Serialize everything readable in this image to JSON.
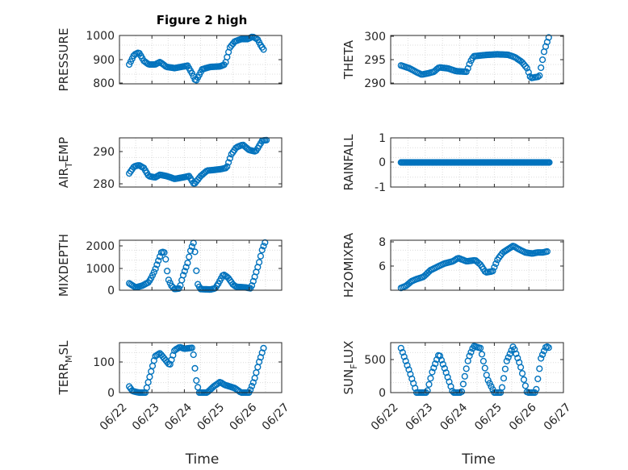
{
  "figure": {
    "title": "Figure 2 high"
  },
  "chart_data": [
    {
      "type": "scatter",
      "panel": "pressure",
      "ylabel": "PRESSURE",
      "yticks": [
        "800",
        "900",
        "1000"
      ],
      "ylim": [
        800,
        1000
      ],
      "xticks": [
        "06/22",
        "06/23",
        "06/24",
        "06/25",
        "06/26",
        "06/27"
      ],
      "xlim": [
        0,
        5
      ],
      "grid": true,
      "color": "#0072bd",
      "keypoints": [
        [
          0.3,
          880
        ],
        [
          0.45,
          920
        ],
        [
          0.6,
          930
        ],
        [
          0.75,
          895
        ],
        [
          0.9,
          880
        ],
        [
          1.1,
          880
        ],
        [
          1.25,
          890
        ],
        [
          1.45,
          870
        ],
        [
          1.7,
          865
        ],
        [
          1.9,
          870
        ],
        [
          2.1,
          875
        ],
        [
          2.25,
          840
        ],
        [
          2.35,
          810
        ],
        [
          2.55,
          860
        ],
        [
          2.8,
          870
        ],
        [
          3.1,
          872
        ],
        [
          3.25,
          880
        ],
        [
          3.4,
          950
        ],
        [
          3.55,
          975
        ],
        [
          3.75,
          985
        ],
        [
          3.95,
          985
        ],
        [
          4.1,
          995
        ],
        [
          4.25,
          985
        ],
        [
          4.35,
          960
        ],
        [
          4.45,
          940
        ]
      ]
    },
    {
      "type": "scatter",
      "panel": "theta",
      "ylabel": "THETA",
      "yticks": [
        "290",
        "295",
        "300"
      ],
      "ylim": [
        290,
        300
      ],
      "xticks": [
        "06/22",
        "06/23",
        "06/24",
        "06/25",
        "06/26",
        "06/27"
      ],
      "xlim": [
        0,
        5
      ],
      "grid": true,
      "color": "#0072bd",
      "keypoints": [
        [
          0.3,
          293.8
        ],
        [
          0.55,
          293.2
        ],
        [
          0.75,
          292.4
        ],
        [
          0.9,
          291.9
        ],
        [
          1.1,
          292.2
        ],
        [
          1.25,
          292.5
        ],
        [
          1.4,
          293.4
        ],
        [
          1.65,
          293.2
        ],
        [
          1.9,
          292.6
        ],
        [
          2.2,
          292.5
        ],
        [
          2.3,
          294.5
        ],
        [
          2.4,
          295.7
        ],
        [
          2.8,
          296.0
        ],
        [
          3.1,
          296.1
        ],
        [
          3.4,
          296.0
        ],
        [
          3.6,
          295.5
        ],
        [
          3.8,
          294.5
        ],
        [
          3.95,
          293.2
        ],
        [
          4.05,
          291.2
        ],
        [
          4.3,
          291.5
        ],
        [
          4.45,
          297.0
        ],
        [
          4.6,
          300.1
        ]
      ]
    },
    {
      "type": "scatter",
      "panel": "air_temp",
      "ylabel": "AIR",
      "ylabel_sub": "T",
      "ylabel_rest": "EMP",
      "yticks": [
        "280",
        "290"
      ],
      "ylim": [
        278,
        296
      ],
      "xticks": [
        "06/22",
        "06/23",
        "06/24",
        "06/25",
        "06/26",
        "06/27"
      ],
      "xlim": [
        0,
        5
      ],
      "grid": true,
      "color": "#0072bd",
      "keypoints": [
        [
          0.3,
          283
        ],
        [
          0.45,
          285.5
        ],
        [
          0.6,
          286
        ],
        [
          0.75,
          285
        ],
        [
          0.9,
          282
        ],
        [
          1.1,
          281.5
        ],
        [
          1.25,
          282.5
        ],
        [
          1.45,
          282
        ],
        [
          1.7,
          281
        ],
        [
          1.95,
          281.5
        ],
        [
          2.15,
          282
        ],
        [
          2.3,
          279
        ],
        [
          2.5,
          282
        ],
        [
          2.7,
          284
        ],
        [
          3.1,
          284.5
        ],
        [
          3.3,
          285
        ],
        [
          3.45,
          290
        ],
        [
          3.6,
          292.5
        ],
        [
          3.8,
          293.5
        ],
        [
          4.0,
          291.5
        ],
        [
          4.2,
          291
        ],
        [
          4.3,
          293
        ],
        [
          4.4,
          295
        ],
        [
          4.55,
          295.2
        ]
      ]
    },
    {
      "type": "scatter",
      "panel": "rainfall",
      "ylabel": "RAINFALL",
      "yticks": [
        "-1",
        "0",
        "1"
      ],
      "ylim": [
        -1,
        1
      ],
      "xticks": [
        "06/22",
        "06/23",
        "06/24",
        "06/25",
        "06/26",
        "06/27"
      ],
      "xlim": [
        0,
        5
      ],
      "grid": true,
      "color": "#0072bd",
      "keypoints": [
        [
          0.3,
          0
        ],
        [
          4.6,
          0
        ]
      ]
    },
    {
      "type": "scatter",
      "panel": "mixdepth",
      "ylabel": "MIXDEPTH",
      "yticks": [
        "0",
        "1000",
        "2000"
      ],
      "ylim": [
        0,
        2200
      ],
      "xticks": [
        "06/22",
        "06/23",
        "06/24",
        "06/25",
        "06/26",
        "06/27"
      ],
      "xlim": [
        0,
        5
      ],
      "grid": true,
      "color": "#0072bd",
      "keypoints": [
        [
          0.3,
          300
        ],
        [
          0.5,
          120
        ],
        [
          0.7,
          200
        ],
        [
          0.9,
          350
        ],
        [
          1.0,
          600
        ],
        [
          1.1,
          900
        ],
        [
          1.2,
          1300
        ],
        [
          1.3,
          1700
        ],
        [
          1.4,
          1650
        ],
        [
          1.5,
          500
        ],
        [
          1.6,
          200
        ],
        [
          1.7,
          50
        ],
        [
          1.85,
          80
        ],
        [
          1.95,
          600
        ],
        [
          2.1,
          1200
        ],
        [
          2.2,
          1800
        ],
        [
          2.3,
          2150
        ],
        [
          2.4,
          300
        ],
        [
          2.5,
          50
        ],
        [
          2.8,
          30
        ],
        [
          2.95,
          80
        ],
        [
          3.05,
          300
        ],
        [
          3.2,
          700
        ],
        [
          3.35,
          550
        ],
        [
          3.5,
          250
        ],
        [
          3.6,
          150
        ],
        [
          3.9,
          120
        ],
        [
          4.05,
          80
        ],
        [
          4.15,
          500
        ],
        [
          4.3,
          1200
        ],
        [
          4.4,
          1800
        ],
        [
          4.5,
          2150
        ]
      ]
    },
    {
      "type": "scatter",
      "panel": "h2omixra",
      "ylabel": "H2OMIXRA",
      "yticks": [
        "6",
        "8"
      ],
      "ylim": [
        4,
        8.5
      ],
      "xticks": [
        "06/22",
        "06/23",
        "06/24",
        "06/25",
        "06/26",
        "06/27"
      ],
      "xlim": [
        0,
        5
      ],
      "grid": true,
      "color": "#0072bd",
      "keypoints": [
        [
          0.3,
          4.2
        ],
        [
          0.45,
          4.4
        ],
        [
          0.6,
          4.8
        ],
        [
          0.75,
          5.0
        ],
        [
          0.95,
          5.2
        ],
        [
          1.15,
          5.8
        ],
        [
          1.35,
          6.1
        ],
        [
          1.55,
          6.4
        ],
        [
          1.8,
          6.6
        ],
        [
          1.95,
          6.9
        ],
        [
          2.2,
          6.6
        ],
        [
          2.45,
          6.7
        ],
        [
          2.6,
          6.3
        ],
        [
          2.75,
          5.6
        ],
        [
          2.95,
          5.7
        ],
        [
          3.1,
          6.8
        ],
        [
          3.25,
          7.4
        ],
        [
          3.4,
          7.7
        ],
        [
          3.55,
          8.0
        ],
        [
          3.7,
          7.7
        ],
        [
          3.9,
          7.4
        ],
        [
          4.1,
          7.3
        ],
        [
          4.25,
          7.4
        ],
        [
          4.4,
          7.4
        ],
        [
          4.55,
          7.5
        ]
      ]
    },
    {
      "type": "scatter",
      "panel": "terr_msl",
      "ylabel": "TERR",
      "ylabel_sub": "M",
      "ylabel_rest": "SL",
      "yticks": [
        "0",
        "100"
      ],
      "ylim": [
        0,
        165
      ],
      "xticks": [
        "06/22",
        "06/23",
        "06/24",
        "06/25",
        "06/26",
        "06/27"
      ],
      "xlim": [
        0,
        5
      ],
      "grid": true,
      "color": "#0072bd",
      "keypoints": [
        [
          0.3,
          20
        ],
        [
          0.4,
          5
        ],
        [
          0.6,
          0
        ],
        [
          0.8,
          0
        ],
        [
          0.9,
          40
        ],
        [
          1.0,
          80
        ],
        [
          1.1,
          120
        ],
        [
          1.25,
          130
        ],
        [
          1.4,
          110
        ],
        [
          1.55,
          90
        ],
        [
          1.7,
          140
        ],
        [
          1.85,
          150
        ],
        [
          2.0,
          145
        ],
        [
          2.25,
          148
        ],
        [
          2.3,
          110
        ],
        [
          2.35,
          50
        ],
        [
          2.45,
          0
        ],
        [
          2.7,
          0
        ],
        [
          2.9,
          20
        ],
        [
          3.1,
          35
        ],
        [
          3.25,
          25
        ],
        [
          3.4,
          20
        ],
        [
          3.55,
          15
        ],
        [
          3.75,
          0
        ],
        [
          4.0,
          0
        ],
        [
          4.15,
          40
        ],
        [
          4.3,
          100
        ],
        [
          4.45,
          150
        ]
      ]
    },
    {
      "type": "scatter",
      "panel": "sun_flux",
      "ylabel": "SUN",
      "ylabel_sub": "F",
      "ylabel_rest": "LUX",
      "yticks": [
        "0",
        "500"
      ],
      "ylim": [
        0,
        730
      ],
      "xticks": [
        "06/22",
        "06/23",
        "06/24",
        "06/25",
        "06/26",
        "06/27"
      ],
      "xlim": [
        0,
        5
      ],
      "grid": true,
      "color": "#0072bd",
      "keypoints": [
        [
          0.3,
          650
        ],
        [
          0.55,
          300
        ],
        [
          0.75,
          0
        ],
        [
          1.05,
          0
        ],
        [
          1.2,
          300
        ],
        [
          1.4,
          570
        ],
        [
          1.6,
          300
        ],
        [
          1.8,
          0
        ],
        [
          2.05,
          0
        ],
        [
          2.25,
          500
        ],
        [
          2.4,
          680
        ],
        [
          2.6,
          650
        ],
        [
          2.8,
          200
        ],
        [
          3.0,
          0
        ],
        [
          3.2,
          0
        ],
        [
          3.35,
          450
        ],
        [
          3.55,
          680
        ],
        [
          3.75,
          400
        ],
        [
          3.95,
          0
        ],
        [
          4.2,
          0
        ],
        [
          4.35,
          500
        ],
        [
          4.5,
          680
        ],
        [
          4.6,
          650
        ]
      ]
    }
  ],
  "xaxis": {
    "label": "Time"
  },
  "colors": {
    "marker": "#0072bd",
    "axis": "#262626",
    "grid": "#dcdcdc"
  }
}
